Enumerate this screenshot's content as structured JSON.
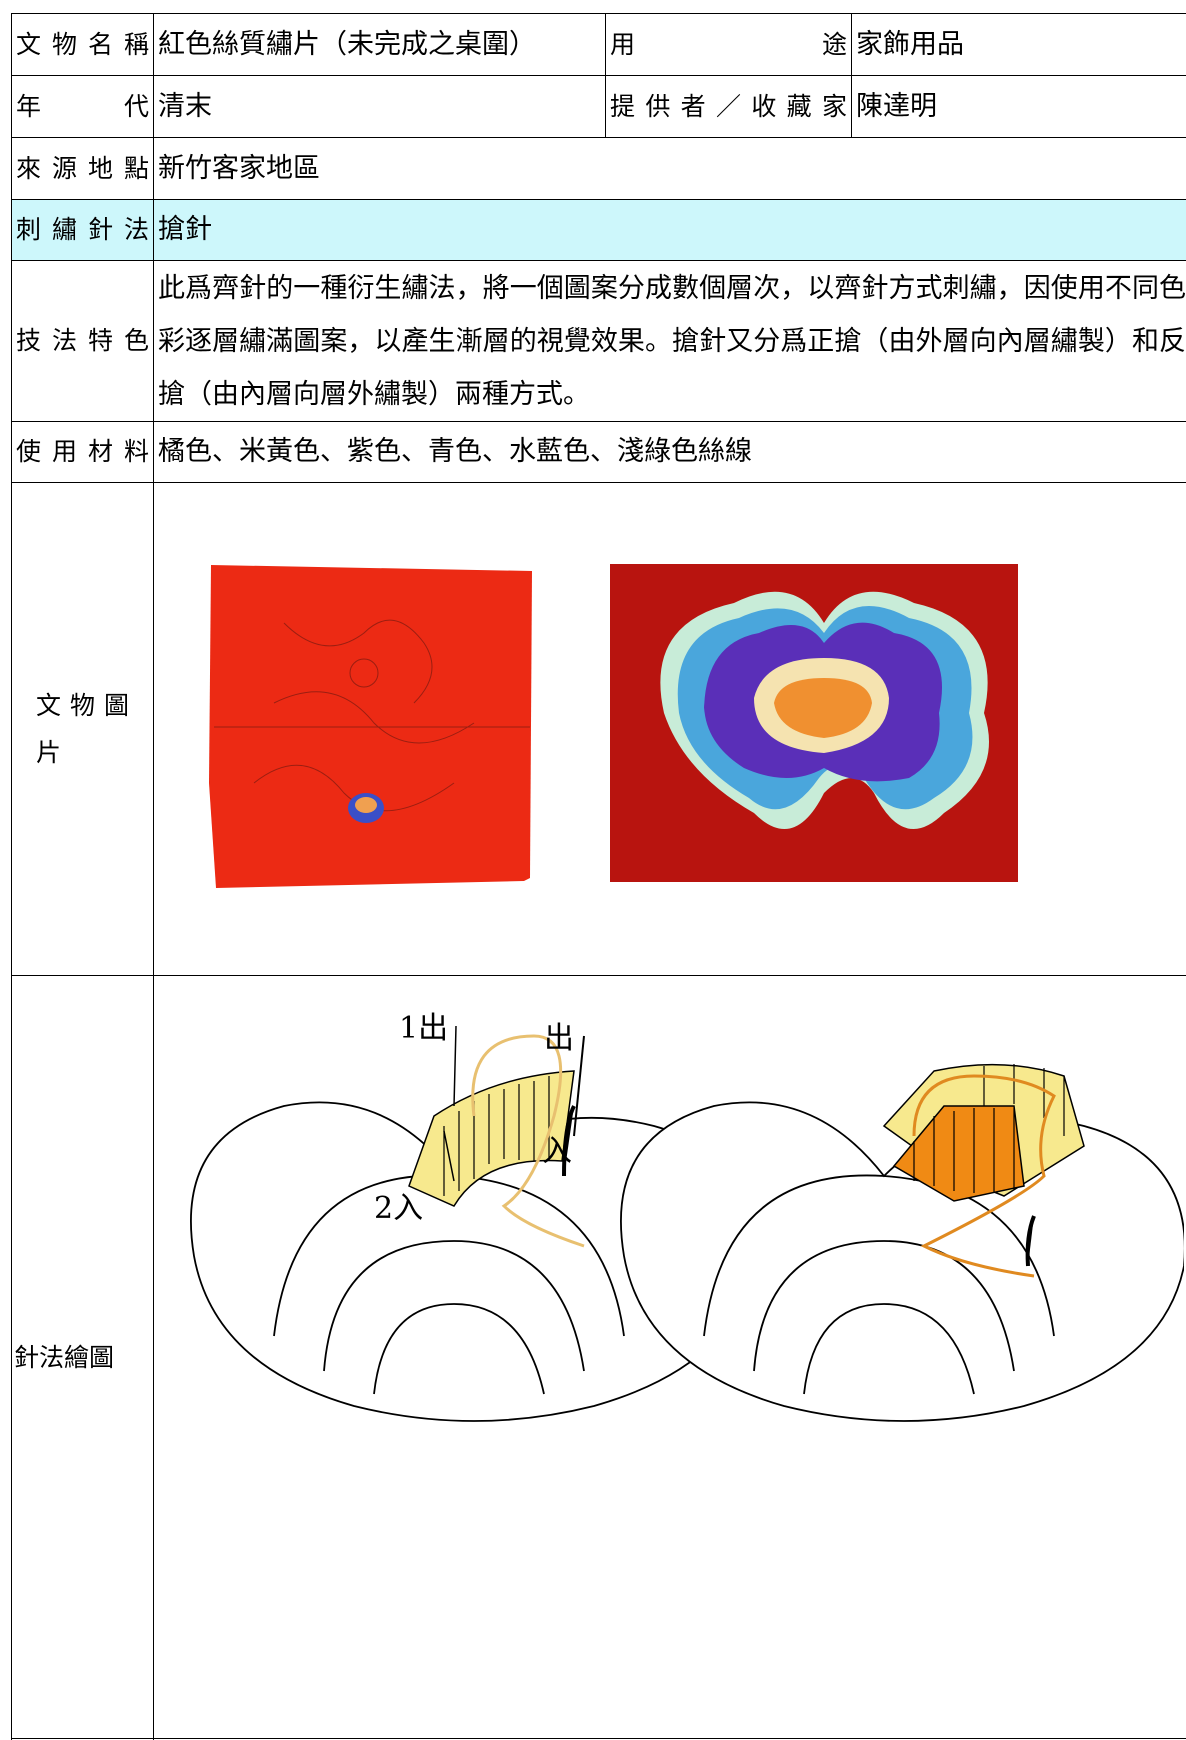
{
  "table": {
    "rows": [
      {
        "label": "文物名稱",
        "value": "紅色絲質繡片（未完成之桌圍）",
        "label2": "用　　　　途",
        "value2": "家飾用品"
      },
      {
        "label": "年　　代",
        "value": "清末",
        "label2": "提供者／收藏家",
        "value2": "陳達明"
      },
      {
        "label": "來源地點",
        "value": "新竹客家地區"
      },
      {
        "label": "刺繡針法",
        "value": "搶針"
      },
      {
        "label": "技法特色",
        "value": "此爲齊針的一種衍生繡法，將一個圖案分成數個層次，以齊針方式刺繡，因使用不同色彩逐層繡滿圖案，以產生漸層的視覺效果。搶針又分爲正搶（由外層向內層繡製）和反搶（由內層向層外繡製）兩種方式。"
      },
      {
        "label": "使用材料",
        "value": "橘色、米黃色、紫色、青色、水藍色、淺綠色絲線"
      },
      {
        "label": "文物圖片"
      },
      {
        "label": "針法繪圖"
      }
    ]
  },
  "diagram": {
    "labels": [
      "1出",
      "出",
      "入",
      "2入"
    ]
  }
}
